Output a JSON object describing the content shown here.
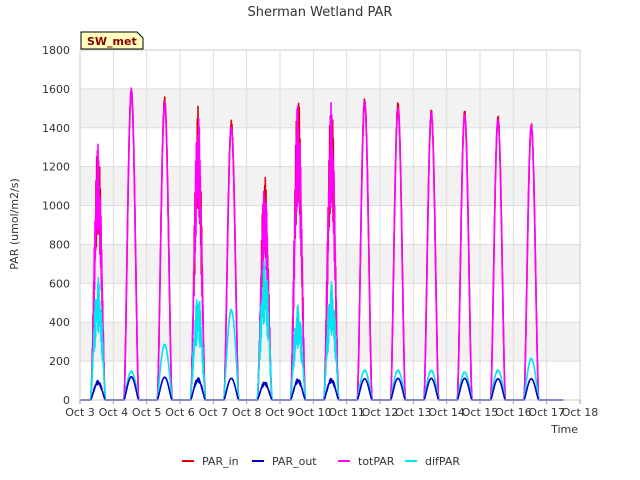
{
  "chart_data": {
    "type": "line",
    "title": "Sherman Wetland PAR",
    "xlabel": "Time",
    "ylabel": "PAR (umol/m2/s)",
    "badge": "SW_met",
    "x_ticks": [
      "Oct 3",
      "Oct 4",
      "Oct 5",
      "Oct 6",
      "Oct 7",
      "Oct 8",
      "Oct 9",
      "Oct 10",
      "Oct 11",
      "Oct 12",
      "Oct 13",
      "Oct 14",
      "Oct 15",
      "Oct 16",
      "Oct 17",
      "Oct 18"
    ],
    "y_ticks": [
      0,
      200,
      400,
      600,
      800,
      1000,
      1200,
      1400,
      1600,
      1800
    ],
    "xlim": [
      0,
      15
    ],
    "ylim": [
      0,
      1800
    ],
    "grid": true,
    "legend_position": "bottom",
    "series": [
      {
        "name": "PAR_in",
        "color": "#e00000",
        "peaks": [
          1330,
          1610,
          1560,
          1510,
          1440,
          1165,
          1600,
          1555,
          1560,
          1535,
          1495,
          1490,
          1465,
          1430
        ]
      },
      {
        "name": "PAR_out",
        "color": "#0000c0",
        "peaks": [
          100,
          120,
          118,
          115,
          112,
          95,
          110,
          112,
          110,
          112,
          112,
          112,
          110,
          110
        ]
      },
      {
        "name": "totPAR",
        "color": "#ff00ff",
        "peaks": [
          1320,
          1605,
          1540,
          1495,
          1420,
          1120,
          1550,
          1535,
          1545,
          1510,
          1490,
          1485,
          1460,
          1425
        ]
      },
      {
        "name": "difPAR",
        "color": "#00e5ee",
        "peaks": [
          630,
          150,
          290,
          545,
          470,
          720,
          490,
          610,
          155,
          155,
          155,
          145,
          155,
          215
        ]
      }
    ]
  }
}
